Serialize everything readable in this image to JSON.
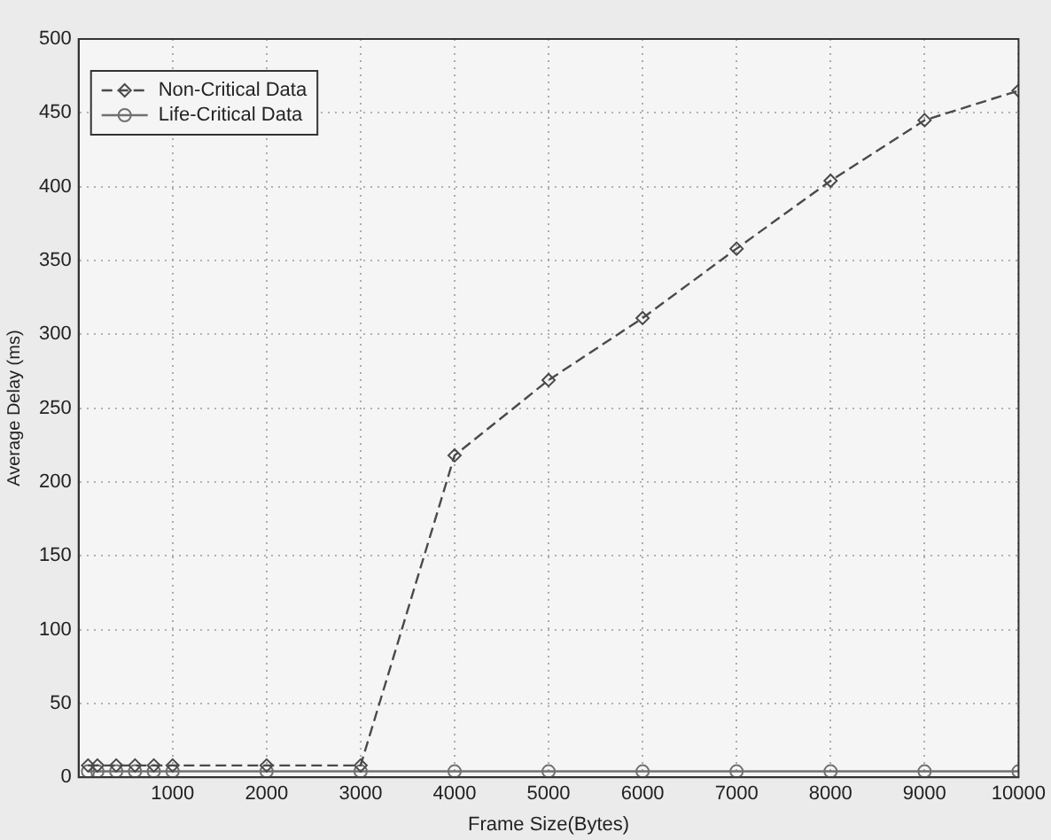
{
  "chart_data": {
    "type": "line",
    "xlabel": "Frame Size(Bytes)",
    "ylabel": "Average Delay (ms)",
    "x": [
      100,
      200,
      400,
      600,
      800,
      1000,
      2000,
      3000,
      4000,
      5000,
      6000,
      7000,
      8000,
      9000,
      10000
    ],
    "series": [
      {
        "name": "Non-Critical Data",
        "color": "#4a4a4a",
        "marker": "diamond",
        "line_style": "dashed",
        "values": [
          8,
          8,
          8,
          8,
          8,
          8,
          8,
          8,
          218,
          269,
          311,
          358,
          404,
          445,
          465
        ]
      },
      {
        "name": "Life-Critical Data",
        "color": "#707070",
        "marker": "circle",
        "line_style": "solid",
        "values": [
          4,
          4,
          4,
          4,
          4,
          4,
          4,
          4,
          4,
          4,
          4,
          4,
          4,
          4,
          4
        ]
      }
    ],
    "xlim": [
      0,
      10000
    ],
    "xticks": [
      1000,
      2000,
      3000,
      4000,
      5000,
      6000,
      7000,
      8000,
      9000,
      10000
    ],
    "ylim": [
      0,
      500
    ],
    "yticks": [
      0,
      50,
      100,
      150,
      200,
      250,
      300,
      350,
      400,
      450,
      500
    ],
    "grid": true,
    "legend": "top left"
  }
}
